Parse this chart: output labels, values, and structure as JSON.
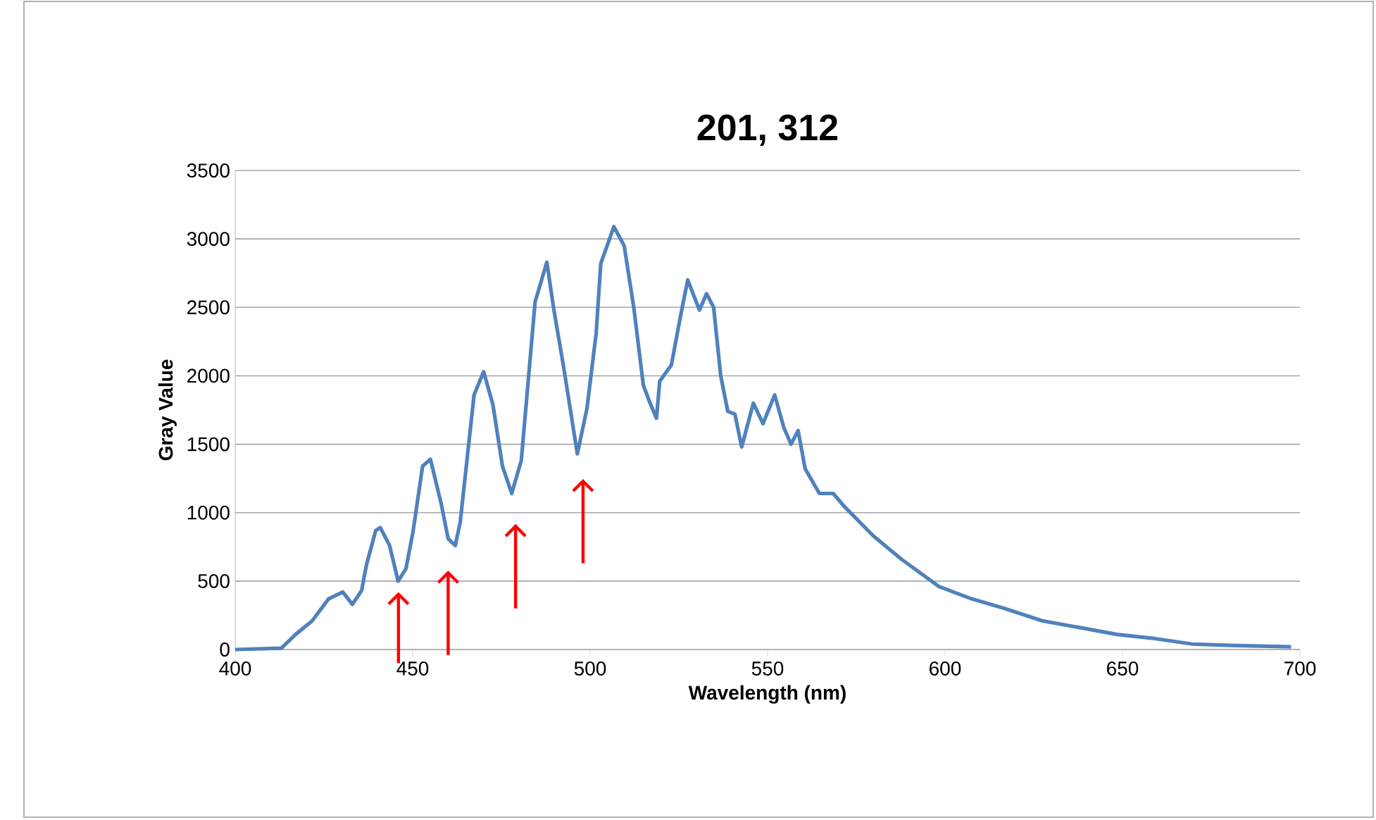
{
  "chart_data": {
    "type": "line",
    "title": "201, 312",
    "xlabel": "Wavelength (nm)",
    "ylabel": "Gray Value",
    "xlim": [
      400,
      700
    ],
    "xticks": [
      400,
      450,
      500,
      550,
      600,
      650,
      700
    ],
    "ylim": [
      0,
      3500
    ],
    "yticks": [
      0,
      500,
      1000,
      1500,
      2000,
      2500,
      3000,
      3500
    ],
    "grid": "y",
    "marker": "none",
    "line_style": "solid",
    "series": [
      {
        "color": "#4f81bd",
        "x": [
          400,
          413,
          417,
          421.7,
          426.3,
          430.3,
          433,
          435.6,
          437,
          439.6,
          440.9,
          443.5,
          445.9,
          448.1,
          450.1,
          452.8,
          455,
          458,
          460,
          462,
          463.4,
          467.3,
          470,
          472.6,
          475.3,
          477.9,
          480.6,
          484.5,
          487.8,
          489.8,
          492.5,
          496.4,
          499.1,
          501.7,
          503,
          506.7,
          509.6,
          512.3,
          515,
          516.9,
          518.7,
          519.6,
          522.9,
          525.5,
          527.5,
          530.8,
          532.8,
          534.8,
          536.8,
          538.8,
          540.8,
          542.7,
          546,
          548.7,
          552,
          554.6,
          556.6,
          558.6,
          560.6,
          564.6,
          568.5,
          571.8,
          579.8,
          587.7,
          598.3,
          607.5,
          616.8,
          627.4,
          638,
          648.5,
          659.1,
          669.7,
          680.3,
          697.5
        ],
        "values": [
          0,
          10,
          110,
          210,
          370,
          420,
          330,
          430,
          620,
          870,
          890,
          760,
          500,
          590,
          860,
          1340,
          1390,
          1070,
          810,
          760,
          930,
          1860,
          2030,
          1790,
          1340,
          1140,
          1380,
          2540,
          2830,
          2480,
          2070,
          1430,
          1760,
          2310,
          2820,
          3090,
          2950,
          2500,
          1930,
          1800,
          1690,
          1960,
          2080,
          2440,
          2700,
          2480,
          2600,
          2500,
          2000,
          1740,
          1720,
          1480,
          1800,
          1650,
          1860,
          1620,
          1500,
          1600,
          1320,
          1140,
          1140,
          1040,
          830,
          660,
          460,
          370,
          300,
          210,
          160,
          110,
          80,
          40,
          30,
          20
        ]
      }
    ]
  }
}
